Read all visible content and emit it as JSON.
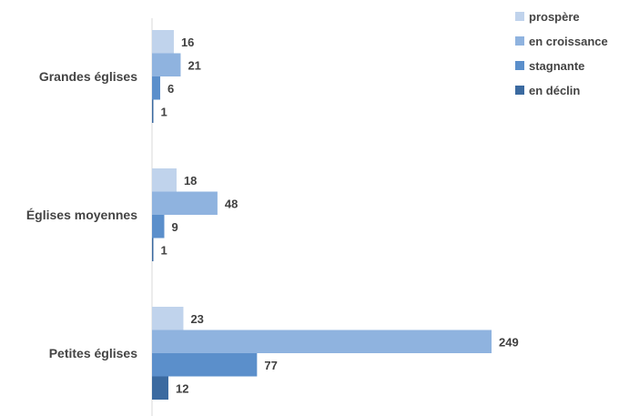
{
  "chart_data": {
    "type": "bar",
    "orientation": "horizontal",
    "categories": [
      "Grandes églises",
      "Églises moyennes",
      "Petites églises"
    ],
    "series": [
      {
        "name": "prospère",
        "color": "#c0d3ec",
        "values": [
          16,
          18,
          23
        ]
      },
      {
        "name": "en croissance",
        "color": "#8fb3df",
        "values": [
          21,
          48,
          249
        ]
      },
      {
        "name": "stagnante",
        "color": "#5b8fcb",
        "values": [
          6,
          9,
          77
        ]
      },
      {
        "name": "en déclin",
        "color": "#3b6aa0",
        "values": [
          1,
          1,
          12
        ]
      }
    ],
    "title": "",
    "xlabel": "",
    "ylabel": "",
    "xlim": [
      0,
      249
    ],
    "grid": false,
    "legend_position": "top-right",
    "data_labels": true
  }
}
